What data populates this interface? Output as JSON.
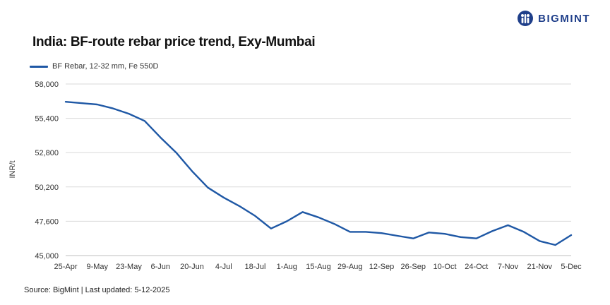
{
  "brand": {
    "name": "BIGMINT",
    "logo_icon": "bigmint-logo-icon"
  },
  "colors": {
    "series": "#1f58a5",
    "grid": "#d9d9d9",
    "brand": "#1f3f8a"
  },
  "footer": {
    "source": "Source: BigMint | Last updated: 5-12-2025"
  },
  "chart_data": {
    "type": "line",
    "title": "India: BF-route rebar price trend, Exy-Mumbai",
    "xlabel": "",
    "ylabel": "INR/t",
    "ylim": [
      45000,
      58000
    ],
    "yticks": [
      45000,
      47600,
      50200,
      52800,
      55400,
      58000
    ],
    "ytick_labels": [
      "45,000",
      "47,600",
      "50,200",
      "52,800",
      "55,400",
      "58,000"
    ],
    "xtick_labels": [
      "25-Apr",
      "9-May",
      "23-May",
      "6-Jun",
      "20-Jun",
      "4-Jul",
      "18-Jul",
      "1-Aug",
      "15-Aug",
      "29-Aug",
      "12-Sep",
      "26-Sep",
      "10-Oct",
      "24-Oct",
      "7-Nov",
      "21-Nov",
      "5-Dec"
    ],
    "grid": "horizontal",
    "legend": "top-left",
    "x": [
      "25-Apr",
      "2-May",
      "9-May",
      "16-May",
      "23-May",
      "30-May",
      "6-Jun",
      "13-Jun",
      "20-Jun",
      "27-Jun",
      "4-Jul",
      "11-Jul",
      "18-Jul",
      "25-Jul",
      "1-Aug",
      "8-Aug",
      "15-Aug",
      "22-Aug",
      "29-Aug",
      "5-Sep",
      "12-Sep",
      "19-Sep",
      "26-Sep",
      "3-Oct",
      "10-Oct",
      "17-Oct",
      "24-Oct",
      "31-Oct",
      "7-Nov",
      "14-Nov",
      "21-Nov",
      "28-Nov",
      "5-Dec"
    ],
    "series": [
      {
        "name": "BF Rebar, 12-32 mm, Fe 550D",
        "values": [
          56650,
          56550,
          56450,
          56150,
          55750,
          55200,
          53950,
          52800,
          51400,
          50150,
          49400,
          48750,
          48000,
          47050,
          47600,
          48300,
          47900,
          47400,
          46800,
          46800,
          46700,
          46500,
          46300,
          46750,
          46650,
          46400,
          46300,
          46850,
          47300,
          46800,
          46100,
          45800,
          46550
        ]
      }
    ]
  }
}
